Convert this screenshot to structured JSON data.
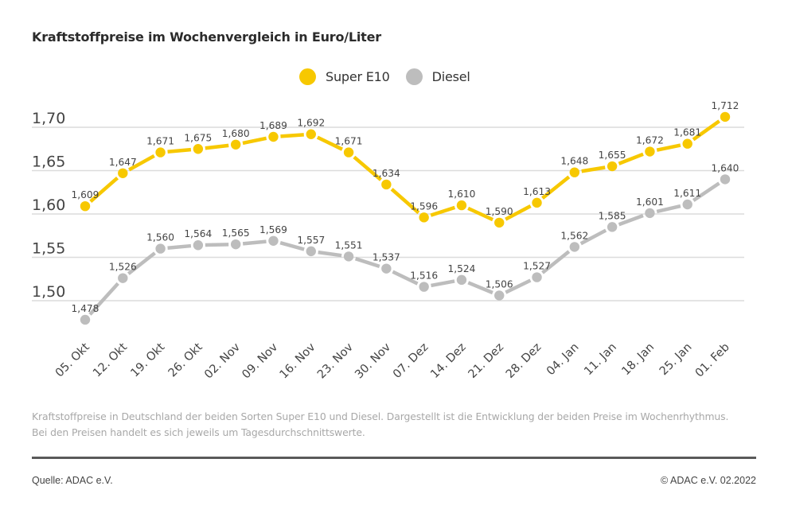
{
  "header": {
    "title": "Kraftstoffpreise im Wochenvergleich in Euro/Liter"
  },
  "legend": [
    {
      "name": "Super E10",
      "color": "#F7C800"
    },
    {
      "name": "Diesel",
      "color": "#BDBDBD"
    }
  ],
  "chart_data": {
    "type": "line",
    "title": "Kraftstoffpreise im Wochenvergleich in Euro/Liter",
    "xlabel": "",
    "ylabel": "Euro/Liter",
    "ylim": [
      1.45,
      1.72
    ],
    "yticks": [
      1.5,
      1.55,
      1.6,
      1.65,
      1.7
    ],
    "ytick_labels": [
      "1,50",
      "1,55",
      "1,60",
      "1,65",
      "1,70"
    ],
    "grid": true,
    "legend_position": "top-center",
    "categories": [
      "05. Okt",
      "12. Okt",
      "19. Okt",
      "26. Okt",
      "02. Nov",
      "09. Nov",
      "16. Nov",
      "23. Nov",
      "30. Nov",
      "07. Dez",
      "14. Dez",
      "21. Dez",
      "28. Dez",
      "04. Jan",
      "11. Jan",
      "18. Jan",
      "25. Jan",
      "01. Feb"
    ],
    "series": [
      {
        "name": "Super E10",
        "color": "#F7C800",
        "values": [
          1.609,
          1.647,
          1.671,
          1.675,
          1.68,
          1.689,
          1.692,
          1.671,
          1.634,
          1.596,
          1.61,
          1.59,
          1.613,
          1.648,
          1.655,
          1.672,
          1.681,
          1.712
        ],
        "labels": [
          "1,609",
          "1,647",
          "1,671",
          "1,675",
          "1,680",
          "1,689",
          "1,692",
          "1,671",
          "1,634",
          "1,596",
          "1,610",
          "1,590",
          "1,613",
          "1,648",
          "1,655",
          "1,672",
          "1,681",
          "1,712"
        ]
      },
      {
        "name": "Diesel",
        "color": "#BDBDBD",
        "values": [
          1.478,
          1.526,
          1.56,
          1.564,
          1.565,
          1.569,
          1.557,
          1.551,
          1.537,
          1.516,
          1.524,
          1.506,
          1.527,
          1.562,
          1.585,
          1.601,
          1.611,
          1.64
        ],
        "labels": [
          "1,478",
          "1,526",
          "1,560",
          "1,564",
          "1,565",
          "1,569",
          "1,557",
          "1,551",
          "1,537",
          "1,516",
          "1,524",
          "1,506",
          "1,527",
          "1,562",
          "1,585",
          "1,601",
          "1,611",
          "1,640"
        ]
      }
    ]
  },
  "note": "Kraftstoffpreise in Deutschland der beiden Sorten Super E10 und Diesel. Dargestellt ist die Entwicklung der beiden Preise im Wochenrhythmus. Bei den Preisen handelt es sich jeweils um Tagesdurchschnittswerte.",
  "footer": {
    "source": "Quelle: ADAC e.V.",
    "copyright": "© ADAC e.V. 02.2022"
  }
}
